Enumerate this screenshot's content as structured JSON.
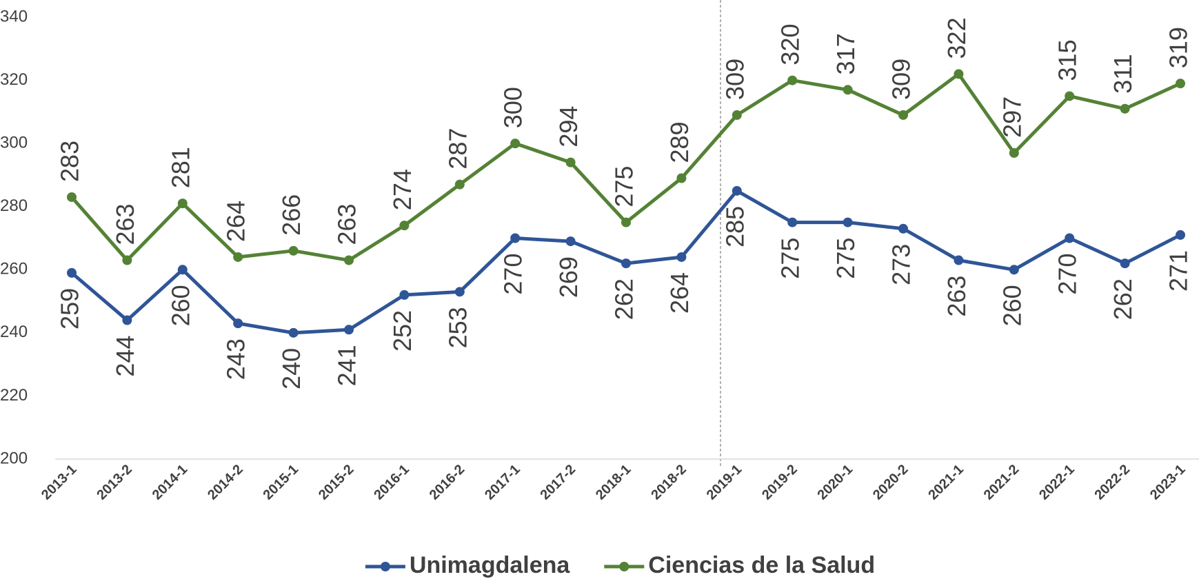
{
  "chart_data": {
    "type": "line",
    "categories": [
      "2013-1",
      "2013-2",
      "2014-1",
      "2014-2",
      "2015-1",
      "2015-2",
      "2016-1",
      "2016-2",
      "2017-1",
      "2017-2",
      "2018-1",
      "2018-2",
      "2019-1",
      "2019-2",
      "2020-1",
      "2020-2",
      "2021-1",
      "2021-2",
      "2022-1",
      "2022-2",
      "2023-1"
    ],
    "series": [
      {
        "name": "Unimagdalena",
        "color": "#2f5597",
        "values": [
          259,
          244,
          260,
          243,
          240,
          241,
          252,
          253,
          270,
          269,
          262,
          264,
          285,
          275,
          275,
          273,
          263,
          260,
          270,
          262,
          271
        ]
      },
      {
        "name": "Ciencias de la Salud",
        "color": "#548235",
        "values": [
          283,
          263,
          281,
          264,
          266,
          263,
          274,
          287,
          300,
          294,
          275,
          289,
          309,
          320,
          317,
          309,
          322,
          297,
          315,
          311,
          319
        ]
      }
    ],
    "ylim": [
      200,
      340
    ],
    "yticks": [
      200,
      220,
      240,
      260,
      280,
      300,
      320,
      340
    ],
    "grid": false,
    "legend": "bottom"
  }
}
